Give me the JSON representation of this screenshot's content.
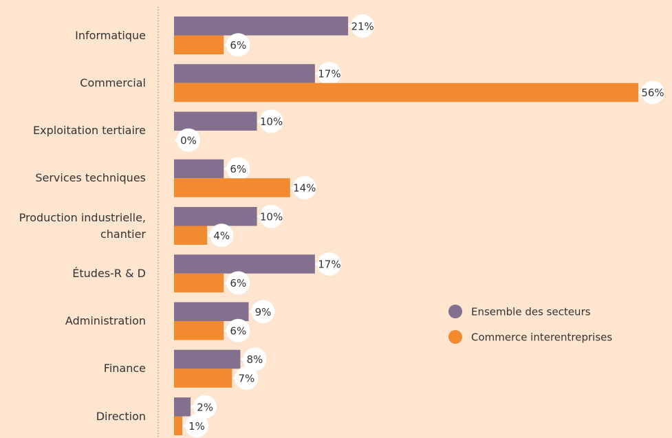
{
  "chart_data": {
    "type": "hbar",
    "categories": [
      "Informatique",
      "Commercial",
      "Exploitation tertiaire",
      "Services techniques",
      "Production industrielle,\nchantier",
      "Études-R & D",
      "Administration",
      "Finance",
      "Direction"
    ],
    "series": [
      {
        "name": "Ensemble des secteurs",
        "color": "#83708f",
        "values": [
          21,
          17,
          10,
          6,
          10,
          17,
          9,
          8,
          2
        ],
        "value_labels": [
          "21%",
          "17%",
          "10%",
          "6%",
          "10%",
          "17%",
          "9%",
          "8%",
          "2%"
        ]
      },
      {
        "name": "Commerce interentreprises",
        "color": "#f28a30",
        "values": [
          6,
          56,
          0,
          14,
          4,
          6,
          6,
          7,
          1
        ],
        "value_labels": [
          "6%",
          "56%",
          "0%",
          "14%",
          "4%",
          "6%",
          "6%",
          "7%",
          "1%"
        ]
      }
    ],
    "legend": "right"
  }
}
